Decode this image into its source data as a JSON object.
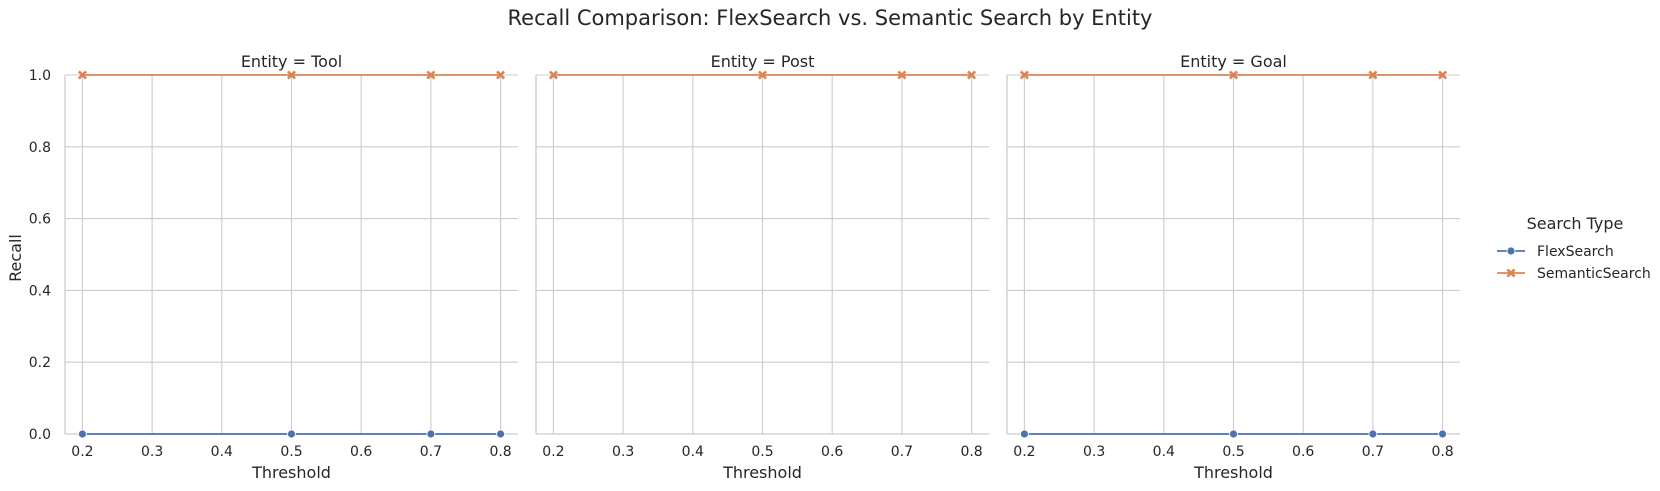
{
  "chart_data": {
    "type": "line",
    "title": "Recall Comparison: FlexSearch vs. Semantic Search by Entity",
    "xlabel": "Threshold",
    "ylabel": "Recall",
    "xlim": [
      0.175,
      0.825
    ],
    "ylim": [
      0.0,
      1.0
    ],
    "x_ticks": [
      "0.2",
      "0.3",
      "0.4",
      "0.5",
      "0.6",
      "0.7",
      "0.8"
    ],
    "y_ticks": [
      "0.0",
      "0.2",
      "0.4",
      "0.6",
      "0.8",
      "1.0"
    ],
    "grid": true,
    "legend": {
      "title": "Search Type",
      "placement": "right"
    },
    "series_styles": [
      {
        "name": "FlexSearch",
        "color": "#4c72b0",
        "marker": "circle"
      },
      {
        "name": "SemanticSearch",
        "color": "#dd8452",
        "marker": "x"
      }
    ],
    "facets": [
      {
        "title": "Entity = Tool",
        "x": [
          0.2,
          0.5,
          0.7,
          0.8
        ],
        "series": [
          {
            "name": "FlexSearch",
            "values": [
              0.0,
              0.0,
              0.0,
              0.0
            ]
          },
          {
            "name": "SemanticSearch",
            "values": [
              1.0,
              1.0,
              1.0,
              1.0
            ]
          }
        ]
      },
      {
        "title": "Entity = Post",
        "x": [
          0.2,
          0.5,
          0.7,
          0.8
        ],
        "series": [
          {
            "name": "FlexSearch",
            "values": []
          },
          {
            "name": "SemanticSearch",
            "values": [
              1.0,
              1.0,
              1.0,
              1.0
            ]
          }
        ]
      },
      {
        "title": "Entity = Goal",
        "x": [
          0.2,
          0.5,
          0.7,
          0.8
        ],
        "series": [
          {
            "name": "FlexSearch",
            "values": [
              0.0,
              0.0,
              0.0,
              0.0
            ]
          },
          {
            "name": "SemanticSearch",
            "values": [
              1.0,
              1.0,
              1.0,
              1.0
            ]
          }
        ]
      }
    ]
  }
}
